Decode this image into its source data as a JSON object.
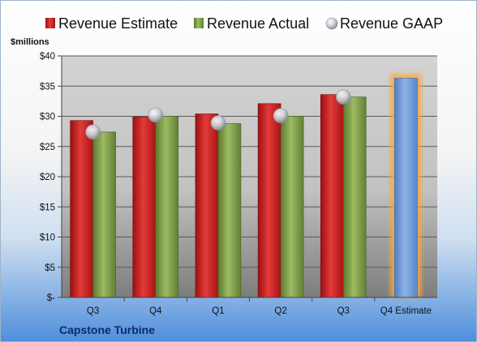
{
  "chart_data": {
    "type": "bar",
    "categories": [
      "Q3",
      "Q4",
      "Q1",
      "Q2",
      "Q3",
      "Q4 Estimate"
    ],
    "series": [
      {
        "name": "Revenue Estimate",
        "values": [
          29.3,
          29.9,
          30.4,
          32.1,
          33.6,
          36.3
        ],
        "color": "#cc1f1f"
      },
      {
        "name": "Revenue Actual",
        "values": [
          27.4,
          30.0,
          28.8,
          30.0,
          33.2,
          null
        ],
        "color": "#7e9f4a"
      },
      {
        "name": "Revenue GAAP",
        "values": [
          27.4,
          30.2,
          28.9,
          30.1,
          33.2,
          null
        ],
        "color": "#c8ccd4"
      }
    ],
    "ylabel": "$millions",
    "ylim": [
      0,
      40
    ],
    "yticks": [
      0,
      5,
      10,
      15,
      20,
      25,
      30,
      35,
      40
    ],
    "ytick_labels": [
      "$-",
      "$5",
      "$10",
      "$15",
      "$20",
      "$25",
      "$30",
      "$35",
      "$40"
    ],
    "highlight_bar_color": "#6f9bd6",
    "grid": true,
    "legend_position": "top",
    "company": "Capstone Turbine"
  }
}
